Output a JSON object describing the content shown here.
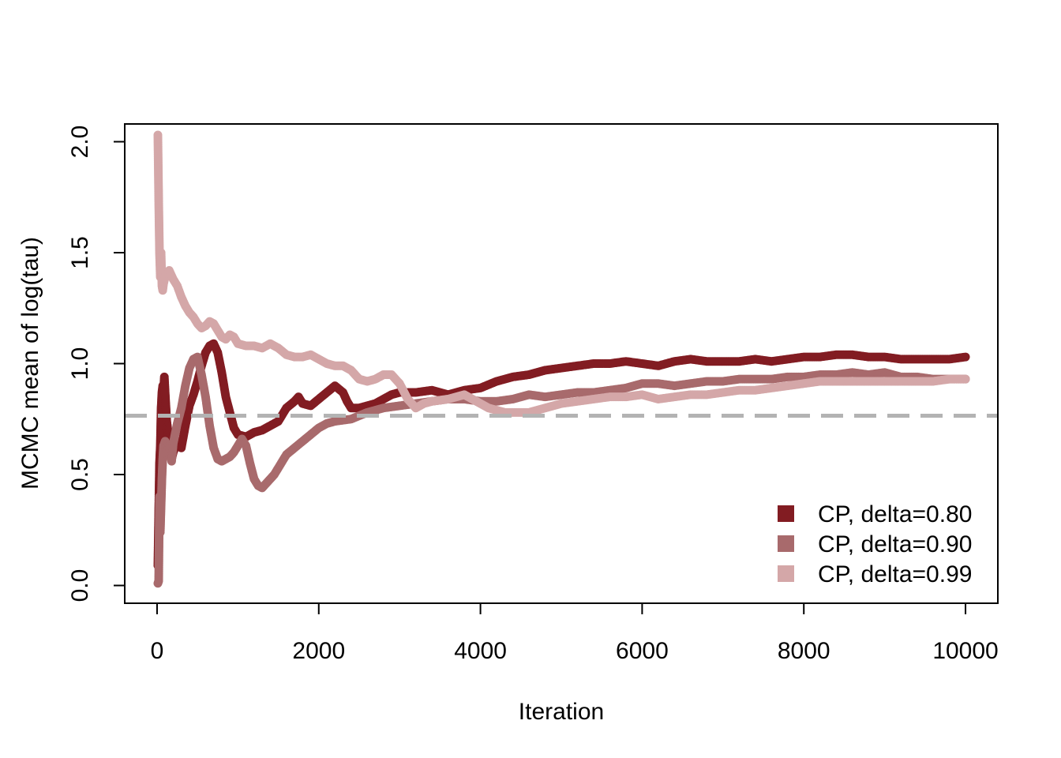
{
  "chart_data": {
    "type": "scatter",
    "title": "",
    "xlabel": "Iteration",
    "ylabel": "MCMC mean of log(tau)",
    "xlim": [
      -400,
      10400
    ],
    "ylim": [
      -0.08,
      2.08
    ],
    "x_ticks": [
      0,
      2000,
      4000,
      6000,
      8000,
      10000
    ],
    "x_tick_labels": [
      "0",
      "2000",
      "4000",
      "6000",
      "8000",
      "10000"
    ],
    "y_ticks": [
      0.0,
      0.5,
      1.0,
      1.5,
      2.0
    ],
    "y_tick_labels": [
      "0.0",
      "0.5",
      "1.0",
      "1.5",
      "2.0"
    ],
    "grid": false,
    "legend_position": "bottom-right",
    "reference_line": {
      "y": 0.765,
      "style": "dashed",
      "color": "#b3b3b3"
    },
    "series": [
      {
        "name": "CP, delta=0.80",
        "color": "#821c22",
        "points": [
          [
            10,
            0.09
          ],
          [
            20,
            0.33
          ],
          [
            30,
            0.55
          ],
          [
            40,
            0.63
          ],
          [
            50,
            0.8
          ],
          [
            60,
            0.87
          ],
          [
            70,
            0.9
          ],
          [
            80,
            0.88
          ],
          [
            90,
            0.94
          ],
          [
            100,
            0.87
          ],
          [
            120,
            0.74
          ],
          [
            140,
            0.68
          ],
          [
            160,
            0.61
          ],
          [
            180,
            0.57
          ],
          [
            200,
            0.6
          ],
          [
            250,
            0.65
          ],
          [
            300,
            0.62
          ],
          [
            350,
            0.72
          ],
          [
            400,
            0.81
          ],
          [
            450,
            0.86
          ],
          [
            500,
            0.92
          ],
          [
            550,
            0.99
          ],
          [
            600,
            1.05
          ],
          [
            650,
            1.08
          ],
          [
            700,
            1.09
          ],
          [
            750,
            1.05
          ],
          [
            800,
            0.96
          ],
          [
            850,
            0.85
          ],
          [
            900,
            0.78
          ],
          [
            950,
            0.71
          ],
          [
            1000,
            0.68
          ],
          [
            1100,
            0.67
          ],
          [
            1200,
            0.69
          ],
          [
            1300,
            0.7
          ],
          [
            1400,
            0.72
          ],
          [
            1500,
            0.74
          ],
          [
            1600,
            0.8
          ],
          [
            1700,
            0.83
          ],
          [
            1750,
            0.85
          ],
          [
            1800,
            0.82
          ],
          [
            1900,
            0.81
          ],
          [
            2000,
            0.84
          ],
          [
            2100,
            0.87
          ],
          [
            2200,
            0.9
          ],
          [
            2300,
            0.87
          ],
          [
            2350,
            0.83
          ],
          [
            2400,
            0.8
          ],
          [
            2500,
            0.8
          ],
          [
            2600,
            0.81
          ],
          [
            2700,
            0.82
          ],
          [
            2800,
            0.84
          ],
          [
            2900,
            0.86
          ],
          [
            3000,
            0.87
          ],
          [
            3200,
            0.87
          ],
          [
            3400,
            0.88
          ],
          [
            3600,
            0.86
          ],
          [
            3800,
            0.88
          ],
          [
            4000,
            0.89
          ],
          [
            4200,
            0.92
          ],
          [
            4400,
            0.94
          ],
          [
            4600,
            0.95
          ],
          [
            4800,
            0.97
          ],
          [
            5000,
            0.98
          ],
          [
            5200,
            0.99
          ],
          [
            5400,
            1.0
          ],
          [
            5600,
            1.0
          ],
          [
            5800,
            1.01
          ],
          [
            6000,
            1.0
          ],
          [
            6200,
            0.99
          ],
          [
            6400,
            1.01
          ],
          [
            6600,
            1.02
          ],
          [
            6800,
            1.01
          ],
          [
            7000,
            1.01
          ],
          [
            7200,
            1.01
          ],
          [
            7400,
            1.02
          ],
          [
            7600,
            1.01
          ],
          [
            7800,
            1.02
          ],
          [
            8000,
            1.03
          ],
          [
            8200,
            1.03
          ],
          [
            8400,
            1.04
          ],
          [
            8600,
            1.04
          ],
          [
            8800,
            1.03
          ],
          [
            9000,
            1.03
          ],
          [
            9200,
            1.02
          ],
          [
            9400,
            1.02
          ],
          [
            9600,
            1.02
          ],
          [
            9800,
            1.02
          ],
          [
            10000,
            1.03
          ]
        ]
      },
      {
        "name": "CP, delta=0.90",
        "color": "#a86a6c",
        "points": [
          [
            10,
            0.01
          ],
          [
            20,
            0.02
          ],
          [
            30,
            0.4
          ],
          [
            40,
            0.24
          ],
          [
            50,
            0.36
          ],
          [
            60,
            0.48
          ],
          [
            70,
            0.57
          ],
          [
            80,
            0.63
          ],
          [
            100,
            0.65
          ],
          [
            120,
            0.6
          ],
          [
            150,
            0.63
          ],
          [
            180,
            0.56
          ],
          [
            200,
            0.64
          ],
          [
            250,
            0.73
          ],
          [
            300,
            0.8
          ],
          [
            350,
            0.9
          ],
          [
            400,
            0.98
          ],
          [
            450,
            1.02
          ],
          [
            500,
            1.03
          ],
          [
            550,
            0.95
          ],
          [
            600,
            0.85
          ],
          [
            650,
            0.72
          ],
          [
            700,
            0.62
          ],
          [
            750,
            0.57
          ],
          [
            800,
            0.56
          ],
          [
            850,
            0.57
          ],
          [
            900,
            0.58
          ],
          [
            950,
            0.6
          ],
          [
            1000,
            0.63
          ],
          [
            1050,
            0.66
          ],
          [
            1100,
            0.63
          ],
          [
            1150,
            0.55
          ],
          [
            1200,
            0.48
          ],
          [
            1250,
            0.45
          ],
          [
            1300,
            0.44
          ],
          [
            1350,
            0.46
          ],
          [
            1400,
            0.48
          ],
          [
            1450,
            0.5
          ],
          [
            1500,
            0.53
          ],
          [
            1600,
            0.59
          ],
          [
            1700,
            0.62
          ],
          [
            1800,
            0.65
          ],
          [
            1900,
            0.68
          ],
          [
            2000,
            0.71
          ],
          [
            2100,
            0.73
          ],
          [
            2200,
            0.74
          ],
          [
            2400,
            0.75
          ],
          [
            2600,
            0.78
          ],
          [
            2800,
            0.8
          ],
          [
            3000,
            0.81
          ],
          [
            3200,
            0.82
          ],
          [
            3400,
            0.83
          ],
          [
            3600,
            0.84
          ],
          [
            3800,
            0.84
          ],
          [
            4000,
            0.83
          ],
          [
            4200,
            0.83
          ],
          [
            4400,
            0.84
          ],
          [
            4600,
            0.86
          ],
          [
            4800,
            0.85
          ],
          [
            5000,
            0.86
          ],
          [
            5200,
            0.87
          ],
          [
            5400,
            0.87
          ],
          [
            5600,
            0.88
          ],
          [
            5800,
            0.89
          ],
          [
            6000,
            0.91
          ],
          [
            6200,
            0.91
          ],
          [
            6400,
            0.9
          ],
          [
            6600,
            0.91
          ],
          [
            6800,
            0.92
          ],
          [
            7000,
            0.92
          ],
          [
            7200,
            0.93
          ],
          [
            7400,
            0.93
          ],
          [
            7600,
            0.93
          ],
          [
            7800,
            0.94
          ],
          [
            8000,
            0.94
          ],
          [
            8200,
            0.95
          ],
          [
            8400,
            0.95
          ],
          [
            8600,
            0.96
          ],
          [
            8800,
            0.95
          ],
          [
            9000,
            0.96
          ],
          [
            9200,
            0.94
          ],
          [
            9400,
            0.94
          ],
          [
            9600,
            0.93
          ],
          [
            9800,
            0.93
          ],
          [
            10000,
            0.93
          ]
        ]
      },
      {
        "name": "CP, delta=0.99",
        "color": "#d4a7a8",
        "points": [
          [
            10,
            2.03
          ],
          [
            20,
            1.74
          ],
          [
            30,
            1.5
          ],
          [
            40,
            1.39
          ],
          [
            50,
            1.5
          ],
          [
            60,
            1.35
          ],
          [
            70,
            1.33
          ],
          [
            80,
            1.36
          ],
          [
            100,
            1.39
          ],
          [
            150,
            1.42
          ],
          [
            200,
            1.38
          ],
          [
            250,
            1.35
          ],
          [
            300,
            1.3
          ],
          [
            350,
            1.26
          ],
          [
            400,
            1.23
          ],
          [
            450,
            1.21
          ],
          [
            500,
            1.18
          ],
          [
            550,
            1.16
          ],
          [
            600,
            1.17
          ],
          [
            650,
            1.19
          ],
          [
            700,
            1.18
          ],
          [
            750,
            1.15
          ],
          [
            800,
            1.12
          ],
          [
            850,
            1.11
          ],
          [
            900,
            1.13
          ],
          [
            950,
            1.12
          ],
          [
            1000,
            1.09
          ],
          [
            1100,
            1.08
          ],
          [
            1200,
            1.08
          ],
          [
            1300,
            1.07
          ],
          [
            1400,
            1.09
          ],
          [
            1500,
            1.07
          ],
          [
            1600,
            1.04
          ],
          [
            1700,
            1.03
          ],
          [
            1800,
            1.03
          ],
          [
            1900,
            1.04
          ],
          [
            2000,
            1.02
          ],
          [
            2100,
            1.0
          ],
          [
            2200,
            0.99
          ],
          [
            2300,
            0.99
          ],
          [
            2400,
            0.97
          ],
          [
            2500,
            0.93
          ],
          [
            2600,
            0.92
          ],
          [
            2700,
            0.93
          ],
          [
            2800,
            0.95
          ],
          [
            2900,
            0.95
          ],
          [
            3000,
            0.91
          ],
          [
            3100,
            0.84
          ],
          [
            3200,
            0.8
          ],
          [
            3300,
            0.82
          ],
          [
            3400,
            0.83
          ],
          [
            3600,
            0.84
          ],
          [
            3800,
            0.86
          ],
          [
            4000,
            0.82
          ],
          [
            4100,
            0.8
          ],
          [
            4200,
            0.79
          ],
          [
            4300,
            0.78
          ],
          [
            4400,
            0.78
          ],
          [
            4600,
            0.78
          ],
          [
            4800,
            0.8
          ],
          [
            5000,
            0.82
          ],
          [
            5200,
            0.83
          ],
          [
            5400,
            0.84
          ],
          [
            5600,
            0.85
          ],
          [
            5800,
            0.85
          ],
          [
            6000,
            0.86
          ],
          [
            6200,
            0.84
          ],
          [
            6400,
            0.85
          ],
          [
            6600,
            0.86
          ],
          [
            6800,
            0.86
          ],
          [
            7000,
            0.87
          ],
          [
            7200,
            0.88
          ],
          [
            7400,
            0.88
          ],
          [
            7600,
            0.89
          ],
          [
            7800,
            0.9
          ],
          [
            8000,
            0.91
          ],
          [
            8200,
            0.92
          ],
          [
            8400,
            0.92
          ],
          [
            8600,
            0.92
          ],
          [
            8800,
            0.92
          ],
          [
            9000,
            0.92
          ],
          [
            9200,
            0.92
          ],
          [
            9400,
            0.92
          ],
          [
            9600,
            0.92
          ],
          [
            9800,
            0.93
          ],
          [
            10000,
            0.93
          ]
        ]
      }
    ]
  }
}
